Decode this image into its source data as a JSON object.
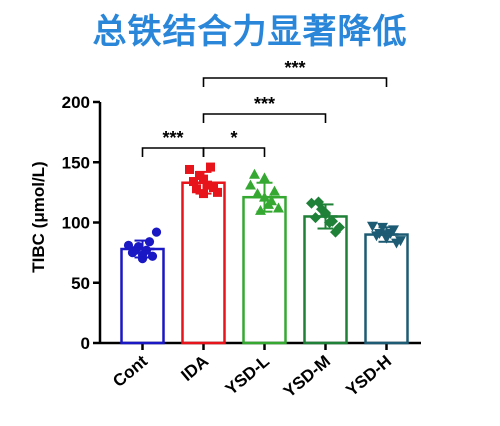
{
  "title": "总铁结合力显著降低",
  "title_color": "#2a86d8",
  "chart_data": {
    "type": "bar",
    "title": "总铁结合力显著降低",
    "xlabel": "",
    "ylabel": "TIBC (μmol/L)",
    "ylim": [
      0,
      200
    ],
    "yticks": [
      0,
      50,
      100,
      150,
      200
    ],
    "categories": [
      "Cont",
      "IDA",
      "YSD-L",
      "YSD-M",
      "YSD-H"
    ],
    "values": [
      78,
      133,
      121,
      105,
      90
    ],
    "errors": [
      7,
      9,
      12,
      10,
      6
    ],
    "colors": [
      "#1a17c4",
      "#e8141b",
      "#35a832",
      "#1f8038",
      "#1c5b73"
    ],
    "markers": [
      "circle",
      "square",
      "triangle",
      "diamond",
      "triangle-down"
    ],
    "points": [
      [
        81,
        77,
        73,
        84,
        92,
        75,
        72,
        80,
        77,
        70
      ],
      [
        144,
        128,
        136,
        146,
        125,
        134,
        129,
        139,
        131,
        124
      ],
      [
        131,
        124,
        137,
        118,
        112,
        140,
        126,
        110,
        115,
        121
      ],
      [
        116,
        117,
        108,
        101,
        96,
        104,
        92,
        111,
        100,
        107
      ],
      [
        97,
        91,
        87,
        94,
        85,
        89,
        83,
        96,
        91,
        90
      ]
    ],
    "significance": [
      {
        "from": "Cont",
        "to": "IDA",
        "label": "***"
      },
      {
        "from": "IDA",
        "to": "YSD-L",
        "label": "*"
      },
      {
        "from": "IDA",
        "to": "YSD-M",
        "label": "***"
      },
      {
        "from": "IDA",
        "to": "YSD-H",
        "label": "***"
      }
    ],
    "grid": false,
    "legend": "none"
  }
}
